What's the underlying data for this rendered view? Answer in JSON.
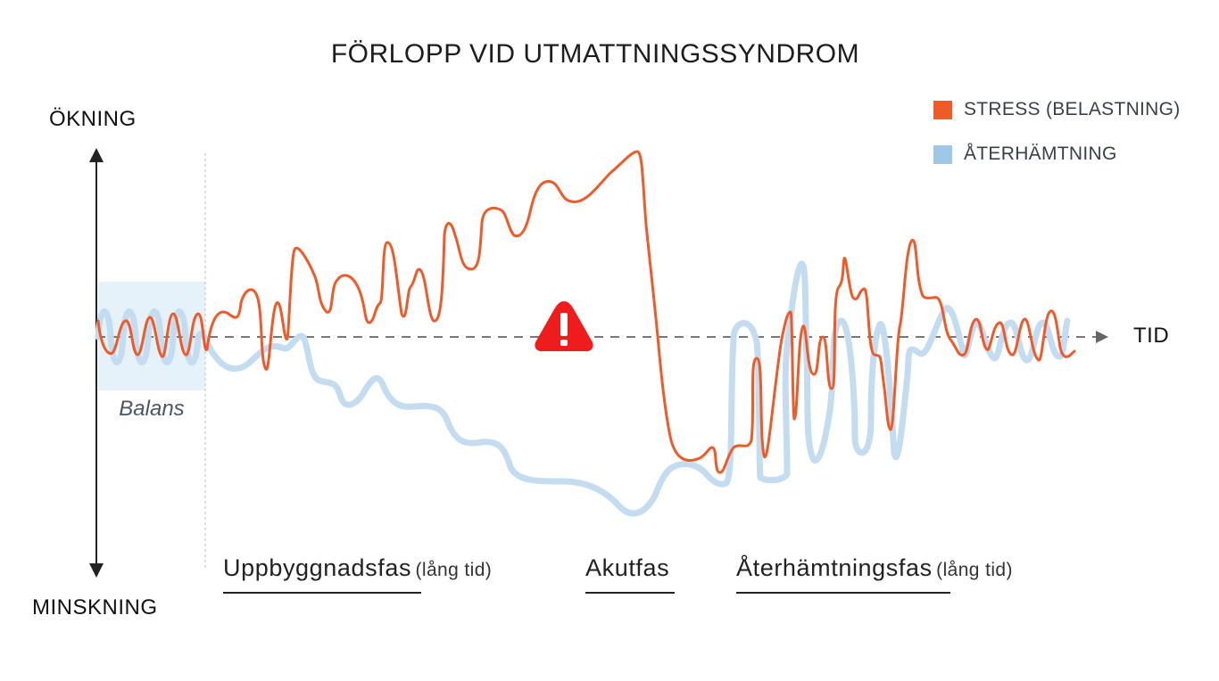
{
  "title": "FÖRLOPP VID UTMATTNINGSSYNDROM",
  "axis": {
    "y_top": "ÖKNING",
    "y_bottom": "MINSKNING",
    "x_right": "TID"
  },
  "legend": [
    {
      "label": "STRESS (BELASTNING)",
      "color": "#f05a28"
    },
    {
      "label": "ÅTERHÄMTNING",
      "color": "#9fc7e6"
    }
  ],
  "balance_label": "Balans",
  "phases": [
    {
      "name": "Uppbyggnadsfas",
      "note": "(lång tid)"
    },
    {
      "name": "Akutfas",
      "note": ""
    },
    {
      "name": "Återhämtningsfas",
      "note": "(lång tid)"
    }
  ],
  "warning_icon": "warning-triangle-icon",
  "colors": {
    "stress": "#f05a28",
    "recovery": "#c3dcef",
    "balance_zone": "#e6f2fa",
    "warning": "#ee1c1c"
  }
}
